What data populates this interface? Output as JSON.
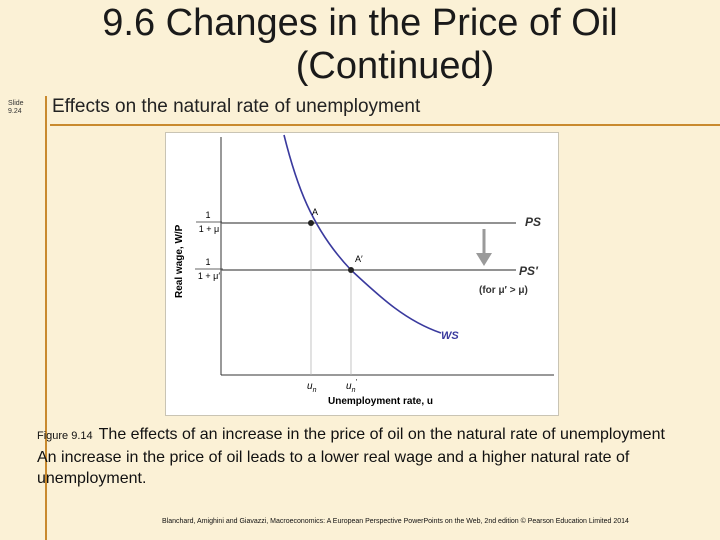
{
  "slide": {
    "title_line1": "9.6 Changes in the Price of Oil",
    "title_line2": "(Continued)",
    "slide_number": "Slide 9.24",
    "subtitle": "Effects on the natural rate of unemployment"
  },
  "diagram": {
    "y_axis_label": "Real wage, W/P",
    "x_axis_label": "Unemployment rate, u",
    "ps_numerator": "1",
    "ps_denominator": "1 + μ",
    "ps2_numerator": "1",
    "ps2_denominator": "1 + μ′",
    "ps_label": "PS",
    "ps2_label": "PS′",
    "ps2_note": "(for μ′ > μ)",
    "ws_label": "WS",
    "point_a": "A",
    "point_a2": "A′",
    "x_tick_1": "u",
    "x_tick_1_sub": "n",
    "x_tick_2": "u",
    "x_tick_2_sub": "n",
    "x_tick_2_sup": "′",
    "colors": {
      "ws_curve": "#3a3a9e",
      "lines": "#6e6e6e",
      "arrow": "#9a9a9a"
    }
  },
  "caption": {
    "figure_number": "Figure 9.14",
    "heading": "The effects of an increase in the price of oil on the natural rate of unemployment",
    "body": "An increase in the price of oil leads to a lower real wage and a higher natural rate of unemployment."
  },
  "credit": "Blanchard, Amighini and Giavazzi, Macroeconomics: A European Perspective PowerPoints on the Web, 2nd edition © Pearson Education Limited 2014"
}
